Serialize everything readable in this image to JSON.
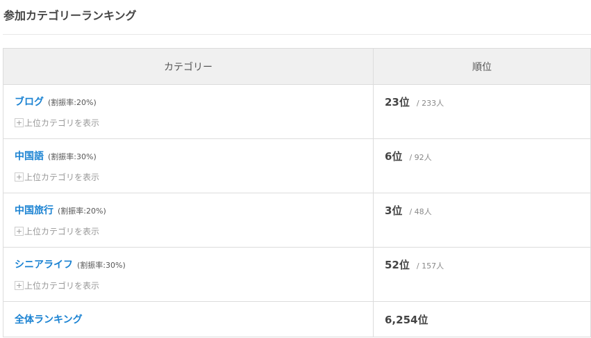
{
  "title": "参加カテゴリーランキング",
  "headers": {
    "category": "カテゴリー",
    "rank": "順位"
  },
  "rows": [
    {
      "name": "ブログ",
      "rate": "(割振率:20%)",
      "show": "上位カテゴリを表示",
      "rank": "23位",
      "count": "/ 233人"
    },
    {
      "name": "中国語",
      "rate": "(割振率:30%)",
      "show": "上位カテゴリを表示",
      "rank": "6位",
      "count": "/ 92人"
    },
    {
      "name": "中国旅行",
      "rate": "(割振率:20%)",
      "show": "上位カテゴリを表示",
      "rank": "3位",
      "count": "/ 48人"
    },
    {
      "name": "シニアライフ",
      "rate": "(割振率:30%)",
      "show": "上位カテゴリを表示",
      "rank": "52位",
      "count": "/ 157人"
    }
  ],
  "overall": {
    "name": "全体ランキング",
    "rank": "6,254位"
  },
  "plus_icon": "+"
}
